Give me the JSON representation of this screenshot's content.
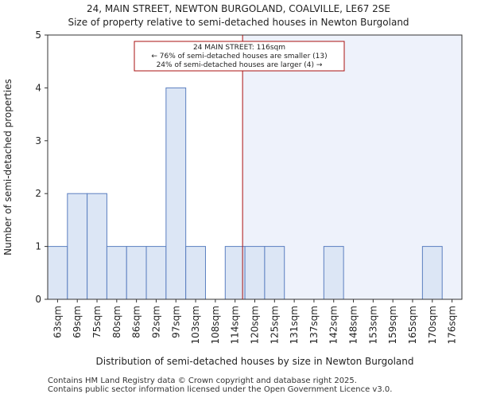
{
  "chart_data": {
    "type": "bar",
    "title": "24, MAIN STREET, NEWTON BURGOLAND, COALVILLE, LE67 2SE",
    "subtitle": "Size of property relative to semi-detached houses in Newton Burgoland",
    "xlabel": "Distribution of semi-detached houses by size in Newton Burgoland",
    "ylabel": "Number of semi-detached properties",
    "categories": [
      "63sqm",
      "69sqm",
      "75sqm",
      "80sqm",
      "86sqm",
      "92sqm",
      "97sqm",
      "103sqm",
      "108sqm",
      "114sqm",
      "120sqm",
      "125sqm",
      "131sqm",
      "137sqm",
      "142sqm",
      "148sqm",
      "153sqm",
      "159sqm",
      "165sqm",
      "170sqm",
      "176sqm"
    ],
    "values": [
      1,
      2,
      2,
      1,
      1,
      1,
      4,
      1,
      0,
      1,
      1,
      1,
      0,
      0,
      1,
      0,
      0,
      0,
      0,
      1,
      0
    ],
    "ylim": [
      0,
      5
    ],
    "yticks": [
      0,
      1,
      2,
      3,
      4,
      5
    ],
    "property_size_sqm": 116,
    "annotation": {
      "line1": "24 MAIN STREET: 116sqm",
      "line2": "← 76% of semi-detached houses are smaller (13)",
      "line3": "24% of semi-detached houses are larger (4) →"
    },
    "colors": {
      "bar_fill": "#dce6f5",
      "bar_stroke": "#5b7fc0",
      "highlight_region": "#eef2fb",
      "marker_line": "#aa1111",
      "annotation_border": "#aa1111"
    },
    "grid": false
  },
  "footer": {
    "line1": "Contains HM Land Registry data © Crown copyright and database right 2025.",
    "line2": "Contains public sector information licensed under the Open Government Licence v3.0."
  }
}
